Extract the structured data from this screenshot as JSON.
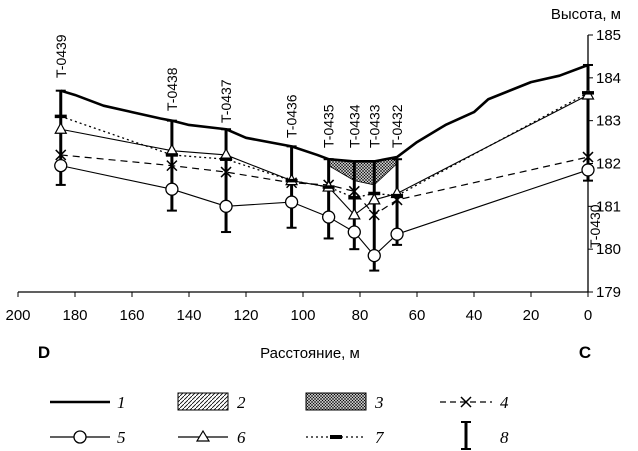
{
  "chart_data": {
    "type": "line",
    "ylabel": "Высота, м",
    "xlabel": "Расстояние, м",
    "xlim": [
      200,
      0
    ],
    "ylim": [
      179,
      185
    ],
    "x_ticks": [
      200,
      180,
      160,
      140,
      120,
      100,
      80,
      60,
      40,
      20,
      0
    ],
    "y_ticks": [
      179,
      180,
      181,
      182,
      183,
      184,
      185
    ],
    "end_labels": {
      "left": "D",
      "right": "C"
    },
    "wells": [
      {
        "name": "T-0439",
        "x": 185
      },
      {
        "name": "T-0438",
        "x": 146
      },
      {
        "name": "T-0437",
        "x": 127
      },
      {
        "name": "T-0436",
        "x": 104
      },
      {
        "name": "T-0435",
        "x": 91
      },
      {
        "name": "T-0434",
        "x": 82
      },
      {
        "name": "T-0433",
        "x": 75
      },
      {
        "name": "T-0432",
        "x": 67
      },
      {
        "name": "T-0430",
        "x": 0
      }
    ],
    "series": [
      {
        "id": "1",
        "name": "1",
        "style": "thick-solid",
        "x": [
          185,
          180,
          170,
          160,
          150,
          146,
          140,
          127,
          120,
          104,
          95,
          91,
          82,
          75,
          67,
          60,
          50,
          40,
          35,
          20,
          10,
          0
        ],
        "y": [
          183.7,
          183.6,
          183.35,
          183.2,
          183.05,
          183.0,
          182.9,
          182.8,
          182.6,
          182.4,
          182.2,
          182.1,
          182.05,
          182.05,
          182.15,
          182.5,
          182.9,
          183.2,
          183.5,
          183.9,
          184.05,
          184.3
        ]
      },
      {
        "id": "4",
        "name": "4",
        "style": "dashed-x",
        "x": [
          185,
          146,
          127,
          104,
          91,
          82,
          75,
          67,
          0
        ],
        "y": [
          182.2,
          181.95,
          181.8,
          181.55,
          181.5,
          181.35,
          180.8,
          181.15,
          182.15
        ]
      },
      {
        "id": "5",
        "name": "5",
        "style": "solid-circle",
        "x": [
          185,
          146,
          127,
          104,
          91,
          82,
          75,
          67,
          0
        ],
        "y": [
          181.95,
          181.4,
          181.0,
          181.1,
          180.75,
          180.4,
          179.85,
          180.35,
          181.85
        ]
      },
      {
        "id": "6",
        "name": "6",
        "style": "solid-triangle",
        "x": [
          185,
          146,
          127,
          104,
          91,
          82,
          75,
          67,
          0
        ],
        "y": [
          182.8,
          182.3,
          182.2,
          181.6,
          181.45,
          180.8,
          181.15,
          181.3,
          183.6
        ]
      },
      {
        "id": "7",
        "name": "7",
        "style": "dotted-dash",
        "x": [
          185,
          146,
          127,
          104,
          91,
          82,
          75,
          67,
          0
        ],
        "y": [
          183.1,
          182.2,
          182.1,
          181.6,
          181.45,
          181.2,
          181.3,
          181.25,
          183.65
        ]
      }
    ],
    "error_bars": [
      {
        "x": 185,
        "low": 181.5,
        "high": 183.7
      },
      {
        "x": 146,
        "low": 180.9,
        "high": 183.0
      },
      {
        "x": 127,
        "low": 180.4,
        "high": 182.8
      },
      {
        "x": 104,
        "low": 180.5,
        "high": 182.4
      },
      {
        "x": 91,
        "low": 180.25,
        "high": 182.1
      },
      {
        "x": 82,
        "low": 180.0,
        "high": 182.05
      },
      {
        "x": 75,
        "low": 179.5,
        "high": 182.05
      },
      {
        "x": 67,
        "low": 180.1,
        "high": 182.1
      },
      {
        "x": 0,
        "low": 181.6,
        "high": 184.3
      }
    ],
    "hatched_area_3": {
      "x": [
        91,
        82,
        75,
        67
      ],
      "top": [
        182.1,
        182.05,
        182.05,
        182.15
      ],
      "bottom": [
        181.95,
        181.6,
        181.5,
        182.0
      ]
    },
    "legend": [
      {
        "id": "1",
        "label": "1"
      },
      {
        "id": "2",
        "label": "2"
      },
      {
        "id": "3",
        "label": "3"
      },
      {
        "id": "4",
        "label": "4"
      },
      {
        "id": "5",
        "label": "5"
      },
      {
        "id": "6",
        "label": "6"
      },
      {
        "id": "7",
        "label": "7"
      },
      {
        "id": "8",
        "label": "8"
      }
    ]
  }
}
